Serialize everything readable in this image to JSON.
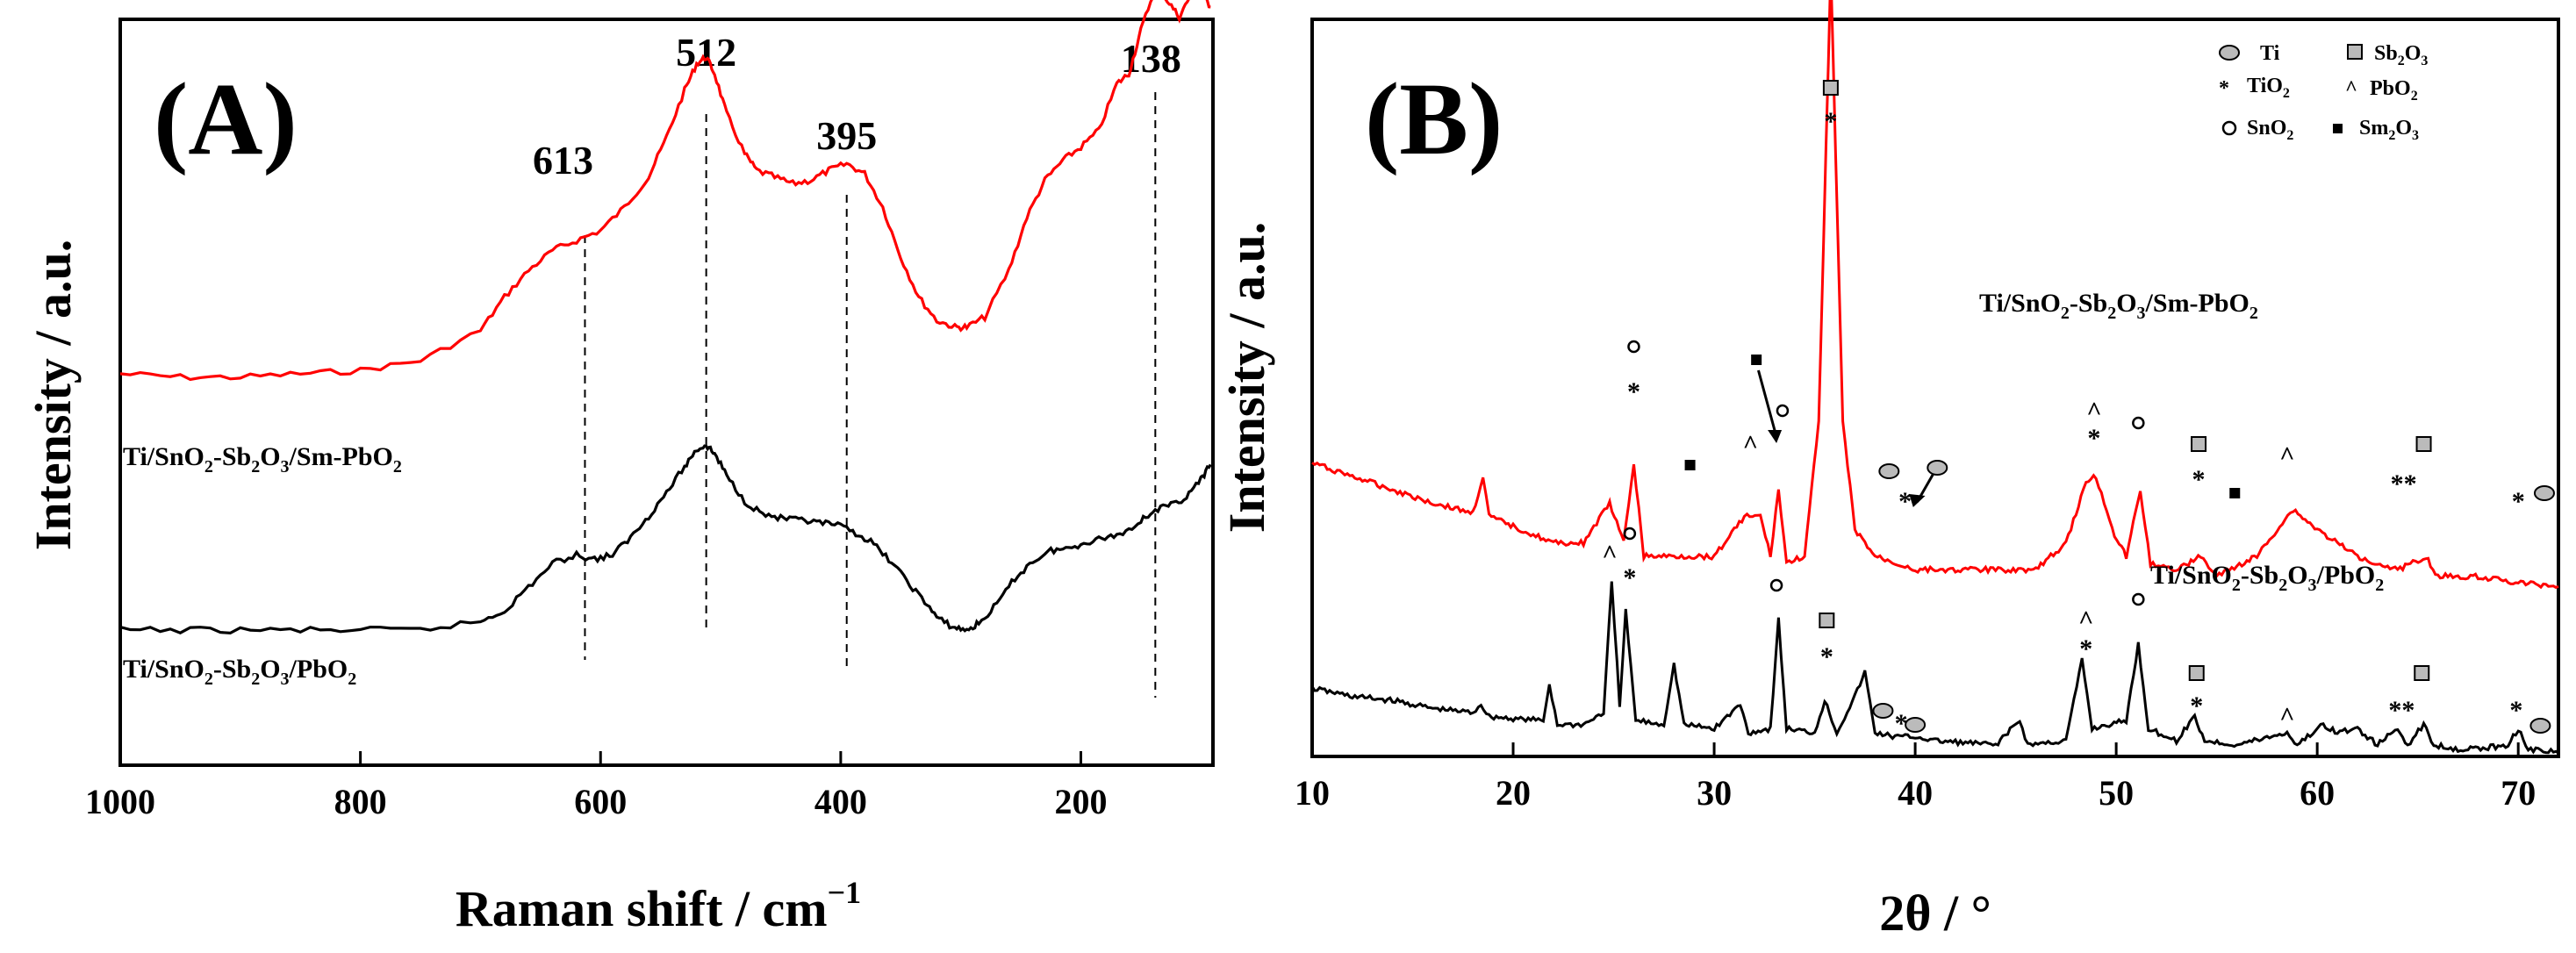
{
  "chart_data": [
    {
      "type": "line",
      "panel_label": "(A)",
      "xlabel": "Raman shift / cm",
      "xlabel_sup": "−1",
      "ylabel": "Intensity / a.u.",
      "xlim": [
        1000,
        90
      ],
      "xticks": [
        "1000",
        "800",
        "600",
        "400",
        "200"
      ],
      "xtick_values": [
        1000,
        800,
        600,
        400,
        200
      ],
      "peaks": [
        {
          "label": "613",
          "x": 613
        },
        {
          "label": "512",
          "x": 512
        },
        {
          "label": "395",
          "x": 395
        },
        {
          "label": "138",
          "x": 138
        }
      ],
      "series": [
        {
          "name": "Ti/SnO2-Sb2O3/Sm-PbO2",
          "color": "#ff0000",
          "points": [
            [
              1000,
              0.05
            ],
            [
              950,
              0.04
            ],
            [
              900,
              0.04
            ],
            [
              850,
              0.05
            ],
            [
              800,
              0.06
            ],
            [
              750,
              0.09
            ],
            [
              700,
              0.18
            ],
            [
              680,
              0.28
            ],
            [
              660,
              0.36
            ],
            [
              640,
              0.42
            ],
            [
              620,
              0.45
            ],
            [
              600,
              0.48
            ],
            [
              580,
              0.55
            ],
            [
              560,
              0.64
            ],
            [
              545,
              0.76
            ],
            [
              530,
              0.9
            ],
            [
              520,
              0.98
            ],
            [
              512,
              1.0
            ],
            [
              505,
              0.95
            ],
            [
              495,
              0.83
            ],
            [
              480,
              0.71
            ],
            [
              470,
              0.66
            ],
            [
              455,
              0.64
            ],
            [
              440,
              0.62
            ],
            [
              425,
              0.63
            ],
            [
              410,
              0.66
            ],
            [
              395,
              0.68
            ],
            [
              380,
              0.65
            ],
            [
              365,
              0.55
            ],
            [
              350,
              0.4
            ],
            [
              335,
              0.28
            ],
            [
              320,
              0.21
            ],
            [
              305,
              0.19
            ],
            [
              295,
              0.19
            ],
            [
              280,
              0.22
            ],
            [
              260,
              0.36
            ],
            [
              245,
              0.52
            ],
            [
              230,
              0.63
            ],
            [
              215,
              0.69
            ],
            [
              200,
              0.73
            ],
            [
              185,
              0.78
            ],
            [
              170,
              0.92
            ],
            [
              160,
              0.95
            ],
            [
              150,
              1.08
            ],
            [
              138,
              1.21
            ],
            [
              128,
              1.17
            ],
            [
              118,
              1.12
            ],
            [
              108,
              1.19
            ],
            [
              100,
              1.2
            ],
            [
              92,
              1.15
            ]
          ]
        },
        {
          "name": "Ti/SnO2-Sb2O3/PbO2",
          "color": "#000000",
          "points": [
            [
              1000,
              0.0
            ],
            [
              950,
              0.0
            ],
            [
              900,
              0.0
            ],
            [
              850,
              0.0
            ],
            [
              800,
              0.0
            ],
            [
              750,
              0.0
            ],
            [
              700,
              0.04
            ],
            [
              680,
              0.09
            ],
            [
              660,
              0.2
            ],
            [
              640,
              0.31
            ],
            [
              620,
              0.35
            ],
            [
              605,
              0.33
            ],
            [
              590,
              0.35
            ],
            [
              575,
              0.43
            ],
            [
              560,
              0.53
            ],
            [
              545,
              0.64
            ],
            [
              530,
              0.76
            ],
            [
              520,
              0.84
            ],
            [
              512,
              0.86
            ],
            [
              505,
              0.82
            ],
            [
              495,
              0.72
            ],
            [
              480,
              0.6
            ],
            [
              465,
              0.54
            ],
            [
              450,
              0.52
            ],
            [
              435,
              0.51
            ],
            [
              420,
              0.5
            ],
            [
              405,
              0.49
            ],
            [
              390,
              0.46
            ],
            [
              375,
              0.41
            ],
            [
              360,
              0.33
            ],
            [
              345,
              0.23
            ],
            [
              330,
              0.13
            ],
            [
              318,
              0.05
            ],
            [
              305,
              0.01
            ],
            [
              295,
              0.0
            ],
            [
              285,
              0.03
            ],
            [
              270,
              0.12
            ],
            [
              255,
              0.24
            ],
            [
              240,
              0.32
            ],
            [
              225,
              0.37
            ],
            [
              210,
              0.38
            ],
            [
              195,
              0.41
            ],
            [
              180,
              0.43
            ],
            [
              165,
              0.45
            ],
            [
              150,
              0.51
            ],
            [
              138,
              0.56
            ],
            [
              125,
              0.58
            ],
            [
              112,
              0.62
            ],
            [
              100,
              0.7
            ],
            [
              92,
              0.77
            ]
          ]
        }
      ]
    },
    {
      "type": "line",
      "panel_label": "(B)",
      "xlabel": "2θ / °",
      "ylabel": "Intensity / a.u.",
      "xlim": [
        10,
        72
      ],
      "xticks": [
        "10",
        "20",
        "30",
        "40",
        "50",
        "60",
        "70"
      ],
      "xtick_values": [
        10,
        20,
        30,
        40,
        50,
        60,
        70
      ],
      "legend": {
        "placement": "top-right",
        "entries": [
          {
            "symbol": "ellipse",
            "label": "Ti"
          },
          {
            "symbol": "box",
            "label": "Sb",
            "sub1": "2",
            "mid": "O",
            "sub2": "3"
          },
          {
            "symbol": "*",
            "label": "TiO",
            "sub1": "2",
            "mid": "",
            "sub2": ""
          },
          {
            "symbol": "^",
            "label": "PbO",
            "sub1": "2",
            "mid": "",
            "sub2": ""
          },
          {
            "symbol": "circle",
            "label": "SnO",
            "sub1": "2",
            "mid": "",
            "sub2": ""
          },
          {
            "symbol": "square",
            "label": "Sm",
            "sub1": "2",
            "mid": "O",
            "sub2": "3"
          }
        ]
      },
      "series": [
        {
          "name": "Ti/SnO2-Sb2O3/Sm-PbO2",
          "color": "#ff0000",
          "points": [
            [
              10,
              0.74
            ],
            [
              12,
              0.72
            ],
            [
              14,
              0.7
            ],
            [
              16,
              0.68
            ],
            [
              18,
              0.665
            ],
            [
              18.5,
              0.72
            ],
            [
              18.8,
              0.66
            ],
            [
              20,
              0.645
            ],
            [
              22,
              0.62
            ],
            [
              23.5,
              0.62
            ],
            [
              24.8,
              0.68
            ],
            [
              25.5,
              0.62
            ],
            [
              26,
              0.74
            ],
            [
              26.5,
              0.6
            ],
            [
              28,
              0.6
            ],
            [
              30,
              0.6
            ],
            [
              31.5,
              0.66
            ],
            [
              32.3,
              0.66
            ],
            [
              32.8,
              0.6
            ],
            [
              33.2,
              0.7
            ],
            [
              33.6,
              0.59
            ],
            [
              34.5,
              0.6
            ],
            [
              35.2,
              0.8
            ],
            [
              35.8,
              1.48
            ],
            [
              36.4,
              0.8
            ],
            [
              37,
              0.64
            ],
            [
              38,
              0.6
            ],
            [
              40,
              0.58
            ],
            [
              42,
              0.58
            ],
            [
              44,
              0.58
            ],
            [
              46,
              0.58
            ],
            [
              47.5,
              0.62
            ],
            [
              48.5,
              0.71
            ],
            [
              49,
              0.72
            ],
            [
              49.8,
              0.64
            ],
            [
              50.5,
              0.6
            ],
            [
              51.2,
              0.7
            ],
            [
              51.7,
              0.59
            ],
            [
              53,
              0.58
            ],
            [
              54.2,
              0.6
            ],
            [
              55,
              0.57
            ],
            [
              57,
              0.6
            ],
            [
              58,
              0.64
            ],
            [
              58.8,
              0.67
            ],
            [
              60,
              0.64
            ],
            [
              62,
              0.6
            ],
            [
              64,
              0.58
            ],
            [
              65.4,
              0.6
            ],
            [
              66,
              0.57
            ],
            [
              68,
              0.57
            ],
            [
              70,
              0.56
            ],
            [
              72,
              0.555
            ]
          ]
        },
        {
          "name": "Ti/SnO2-Sb2O3/PbO2",
          "color": "#000000",
          "points": [
            [
              10,
              0.16
            ],
            [
              12,
              0.14
            ],
            [
              14,
              0.13
            ],
            [
              16,
              0.11
            ],
            [
              18,
              0.1
            ],
            [
              18.4,
              0.12
            ],
            [
              18.8,
              0.09
            ],
            [
              20,
              0.085
            ],
            [
              21.5,
              0.08
            ],
            [
              21.8,
              0.17
            ],
            [
              22.2,
              0.07
            ],
            [
              23.5,
              0.07
            ],
            [
              24.5,
              0.1
            ],
            [
              24.9,
              0.42
            ],
            [
              25.3,
              0.12
            ],
            [
              25.6,
              0.35
            ],
            [
              26.1,
              0.08
            ],
            [
              27.5,
              0.07
            ],
            [
              28,
              0.22
            ],
            [
              28.5,
              0.07
            ],
            [
              30,
              0.06
            ],
            [
              31.3,
              0.12
            ],
            [
              31.7,
              0.05
            ],
            [
              32.8,
              0.06
            ],
            [
              33.2,
              0.33
            ],
            [
              33.6,
              0.06
            ],
            [
              35,
              0.05
            ],
            [
              35.5,
              0.13
            ],
            [
              36.1,
              0.05
            ],
            [
              37,
              0.14
            ],
            [
              37.5,
              0.2
            ],
            [
              38,
              0.05
            ],
            [
              39,
              0.04
            ],
            [
              40,
              0.04
            ],
            [
              41,
              0.03
            ],
            [
              44,
              0.02
            ],
            [
              45.2,
              0.08
            ],
            [
              45.6,
              0.02
            ],
            [
              47.5,
              0.03
            ],
            [
              48.3,
              0.23
            ],
            [
              48.8,
              0.06
            ],
            [
              50.5,
              0.08
            ],
            [
              51.1,
              0.27
            ],
            [
              51.6,
              0.06
            ],
            [
              53,
              0.03
            ],
            [
              53.9,
              0.09
            ],
            [
              54.4,
              0.03
            ],
            [
              56,
              0.02
            ],
            [
              58.5,
              0.05
            ],
            [
              59,
              0.02
            ],
            [
              60.3,
              0.07
            ],
            [
              61,
              0.05
            ],
            [
              62,
              0.06
            ],
            [
              63,
              0.02
            ],
            [
              64,
              0.06
            ],
            [
              64.5,
              0.02
            ],
            [
              65.3,
              0.07
            ],
            [
              65.8,
              0.02
            ],
            [
              67,
              0.01
            ],
            [
              68,
              0.01
            ],
            [
              69.5,
              0.02
            ],
            [
              70,
              0.06
            ],
            [
              70.5,
              0.01
            ],
            [
              72,
              0.0
            ]
          ]
        }
      ]
    }
  ]
}
